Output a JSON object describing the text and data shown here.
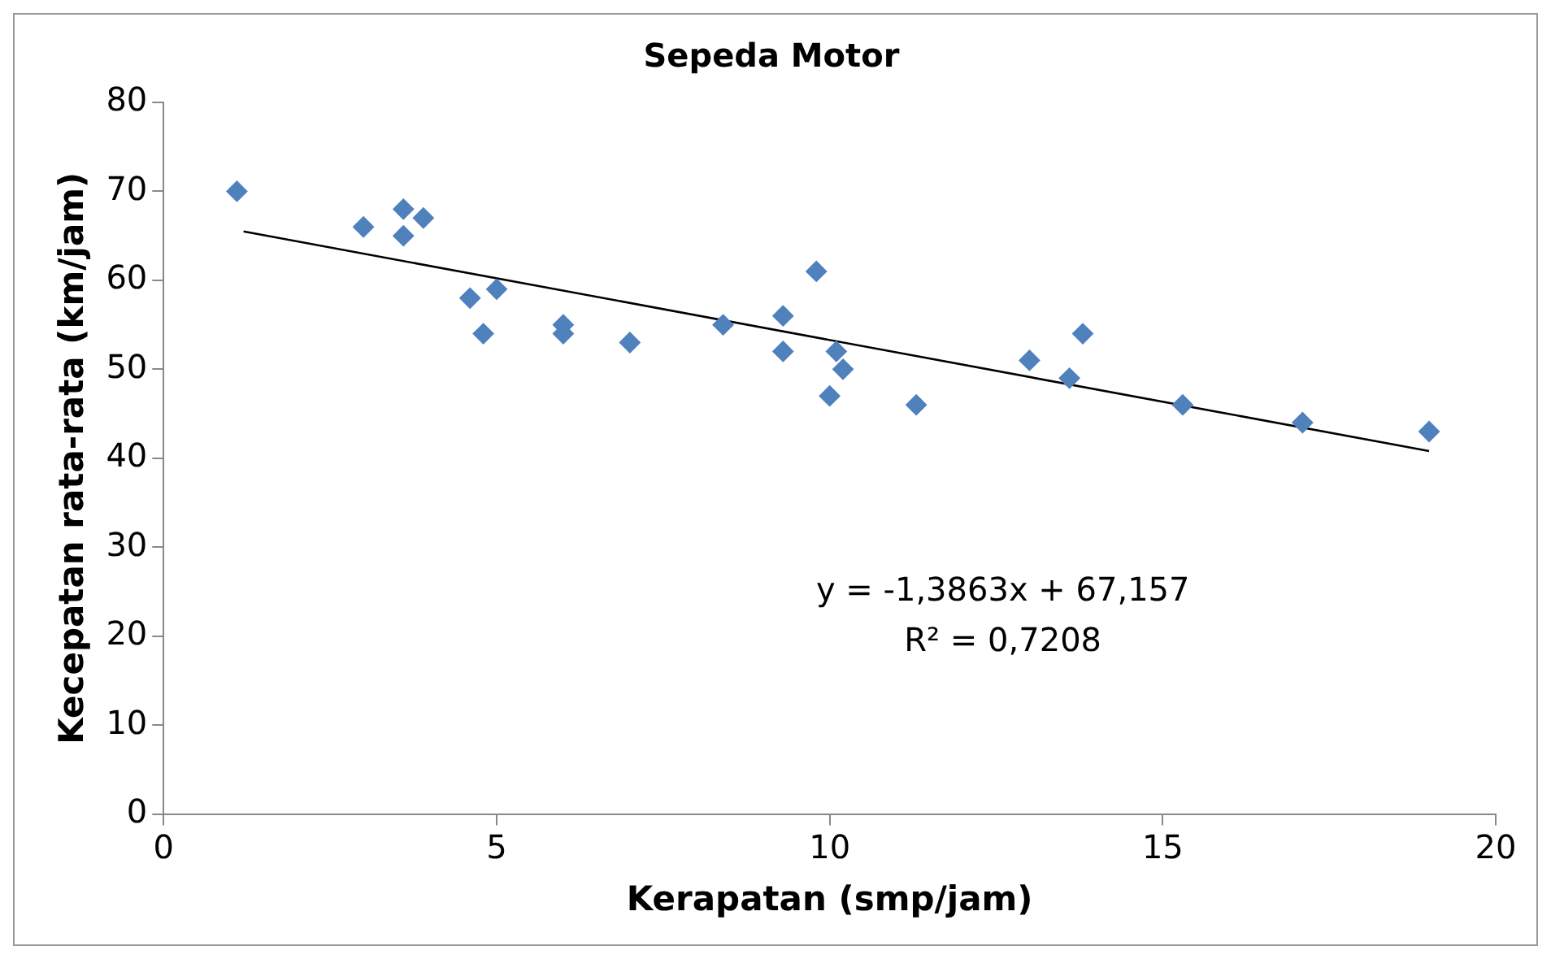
{
  "chart_data": {
    "type": "scatter",
    "title": "Sepeda Motor",
    "xlabel": "Kerapatan (smp/jam)",
    "ylabel": "Kecepatan rata-rata (km/jam)",
    "x": [
      1.1,
      3,
      3.6,
      3.6,
      3.9,
      4.6,
      5.0,
      4.8,
      6,
      6,
      7,
      8.4,
      9.3,
      9.3,
      9.8,
      10.1,
      10.2,
      10,
      11.3,
      13,
      13.6,
      13.8,
      15.3,
      17.1,
      19
    ],
    "series": [
      {
        "color": "#4f81bd",
        "values": [
          70,
          66,
          68,
          65,
          67,
          58,
          59,
          54,
          55,
          54,
          53,
          55,
          56,
          52,
          61,
          52,
          50,
          47,
          46,
          51,
          49,
          54,
          46,
          44,
          43
        ]
      },
      {
        "type": "line",
        "marker": "none",
        "color": "#000000",
        "x": [
          1.2,
          19
        ],
        "values": [
          65.5,
          40.8
        ]
      }
    ],
    "annotations": [
      "y = -1,3863x + 67,157",
      "R² = 0,7208"
    ],
    "xlim": [
      0,
      20
    ],
    "xticks": [
      0,
      5,
      10,
      15,
      20
    ],
    "ylim": [
      0,
      80
    ],
    "yticks": [
      0,
      10,
      20,
      30,
      40,
      50,
      60,
      70,
      80
    ],
    "grid": false,
    "legend": false,
    "marker": "diamond"
  }
}
